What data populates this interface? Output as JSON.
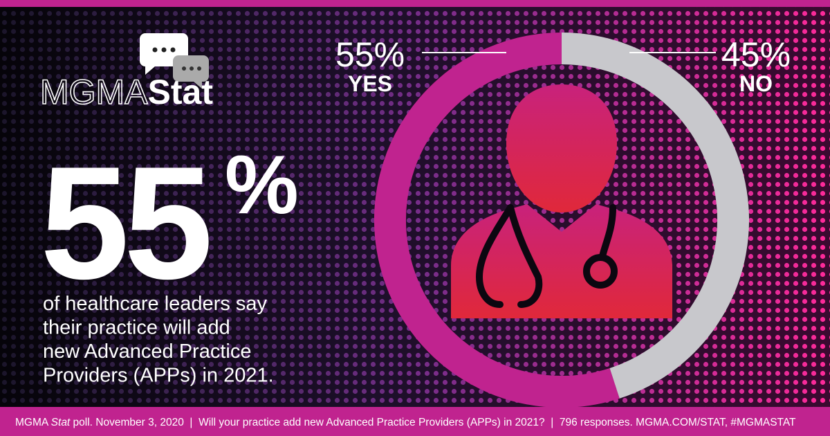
{
  "logo": {
    "brand": "MGMA",
    "product": "Stat"
  },
  "headline": {
    "number": "55",
    "unit": "%"
  },
  "description": [
    "of healthcare leaders say",
    "their practice will add",
    "new Advanced Practice",
    "Providers (APPs) in 2021."
  ],
  "chart_data": {
    "type": "donut",
    "categories": [
      "YES",
      "NO"
    ],
    "values": [
      55,
      45
    ],
    "value_labels": [
      "55%",
      "45%"
    ],
    "colors": [
      "#c0238f",
      "#c8c8cc"
    ]
  },
  "footer": [
    "MGMA ",
    "Stat",
    " poll. November 3, 2020  |  Will your practice add new Advanced Practice Providers (APPs) in 2021?  |  796 responses. MGMA.COM/STAT, #MGMASTAT"
  ]
}
